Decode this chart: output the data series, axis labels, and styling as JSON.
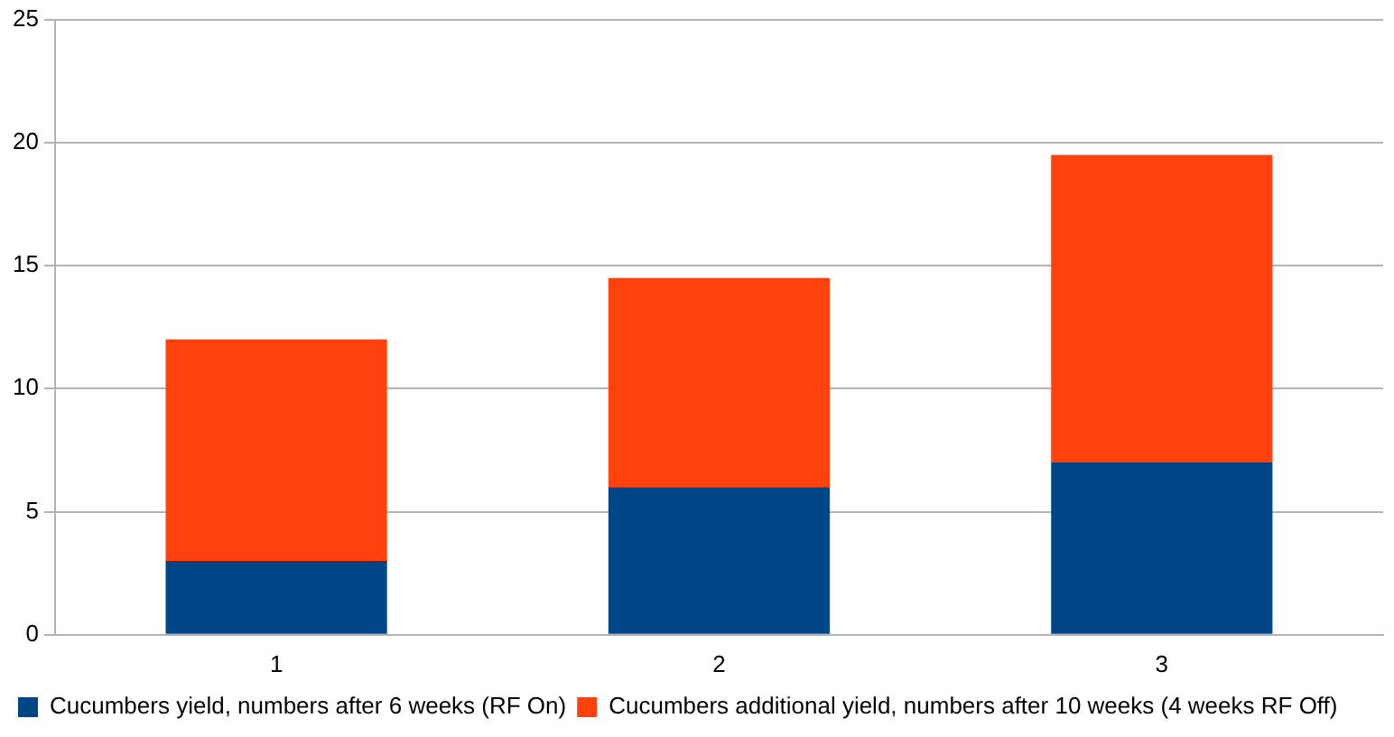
{
  "chart_data": {
    "type": "bar",
    "stacked": true,
    "categories": [
      "1",
      "2",
      "3"
    ],
    "series": [
      {
        "name": "Cucumbers yield, numbers after 6 weeks (RF On)",
        "color": "#004586",
        "values": [
          3,
          6,
          7
        ]
      },
      {
        "name": "Cucumbers additional yield, numbers after 10 weeks (4 weeks RF Off)",
        "color": "#ff420e",
        "values": [
          9,
          8.5,
          12.5
        ]
      }
    ],
    "ylim": [
      0,
      25
    ],
    "yticks": [
      0,
      5,
      10,
      15,
      20,
      25
    ],
    "grid": "y",
    "legend": "bottom"
  }
}
